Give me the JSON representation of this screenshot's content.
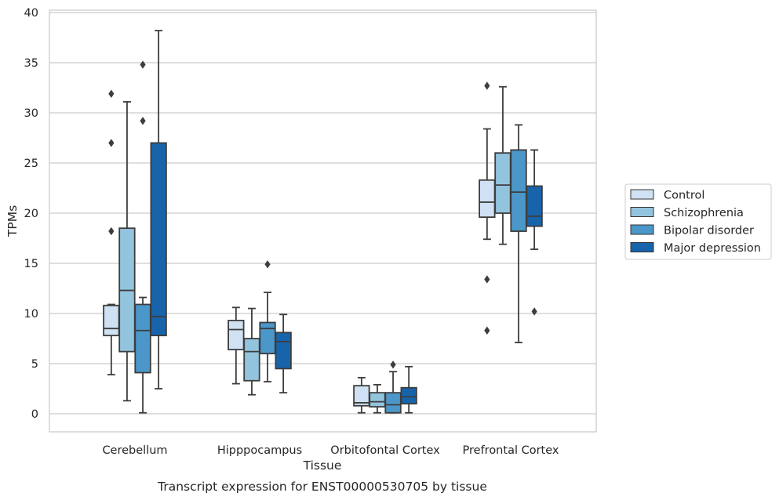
{
  "chart_data": {
    "type": "box",
    "xlabel": "Tissue",
    "ylabel": "TPMs",
    "caption": "Transcript expression for ENST00000530705 by tissue",
    "ylim": [
      -1.8,
      40.2
    ],
    "yticks": [
      0,
      5,
      10,
      15,
      20,
      25,
      30,
      35,
      40
    ],
    "grid": "horizontal",
    "legend_position": "right",
    "categories": [
      "Cerebellum",
      "Hipppocampus",
      "Orbitofontal Cortex",
      "Prefrontal Cortex"
    ],
    "series": [
      {
        "name": "Control",
        "color": "#cfe1f2",
        "boxes": [
          {
            "whisker_low": 3.9,
            "q1": 7.8,
            "median": 8.5,
            "q3": 10.8,
            "whisker_high": 10.9,
            "outliers": [
              31.9,
              27.0,
              18.2
            ]
          },
          {
            "whisker_low": 3.0,
            "q1": 6.4,
            "median": 8.4,
            "q3": 9.3,
            "whisker_high": 10.6,
            "outliers": []
          },
          {
            "whisker_low": 0.1,
            "q1": 0.8,
            "median": 1.1,
            "q3": 2.8,
            "whisker_high": 3.6,
            "outliers": []
          },
          {
            "whisker_low": 17.4,
            "q1": 19.6,
            "median": 21.1,
            "q3": 23.3,
            "whisker_high": 28.4,
            "outliers": [
              32.7,
              13.4,
              8.3
            ]
          }
        ]
      },
      {
        "name": "Schizophrenia",
        "color": "#93c4de",
        "boxes": [
          {
            "whisker_low": 1.3,
            "q1": 6.2,
            "median": 12.3,
            "q3": 18.5,
            "whisker_high": 31.1,
            "outliers": []
          },
          {
            "whisker_low": 1.9,
            "q1": 3.3,
            "median": 6.2,
            "q3": 7.5,
            "whisker_high": 10.5,
            "outliers": []
          },
          {
            "whisker_low": 0.1,
            "q1": 0.7,
            "median": 1.2,
            "q3": 2.1,
            "whisker_high": 2.9,
            "outliers": []
          },
          {
            "whisker_low": 16.9,
            "q1": 20.0,
            "median": 22.8,
            "q3": 26.0,
            "whisker_high": 32.6,
            "outliers": []
          }
        ]
      },
      {
        "name": "Bipolar disorder",
        "color": "#4b97c9",
        "boxes": [
          {
            "whisker_low": 0.1,
            "q1": 4.1,
            "median": 8.3,
            "q3": 10.9,
            "whisker_high": 11.6,
            "outliers": [
              34.8,
              29.2
            ]
          },
          {
            "whisker_low": 3.2,
            "q1": 6.0,
            "median": 8.5,
            "q3": 9.1,
            "whisker_high": 12.1,
            "outliers": [
              14.9
            ]
          },
          {
            "whisker_low": 0.1,
            "q1": 0.1,
            "median": 0.9,
            "q3": 2.1,
            "whisker_high": 4.2,
            "outliers": [
              4.9
            ]
          },
          {
            "whisker_low": 7.1,
            "q1": 18.2,
            "median": 22.1,
            "q3": 26.3,
            "whisker_high": 28.8,
            "outliers": []
          }
        ]
      },
      {
        "name": "Major depression",
        "color": "#1764ab",
        "boxes": [
          {
            "whisker_low": 2.5,
            "q1": 7.8,
            "median": 9.7,
            "q3": 27.0,
            "whisker_high": 38.2,
            "outliers": []
          },
          {
            "whisker_low": 2.1,
            "q1": 4.5,
            "median": 7.2,
            "q3": 8.1,
            "whisker_high": 9.9,
            "outliers": []
          },
          {
            "whisker_low": 0.1,
            "q1": 1.0,
            "median": 1.7,
            "q3": 2.6,
            "whisker_high": 4.7,
            "outliers": []
          },
          {
            "whisker_low": 16.4,
            "q1": 18.7,
            "median": 19.7,
            "q3": 22.7,
            "whisker_high": 26.3,
            "outliers": [
              10.2
            ]
          }
        ]
      }
    ]
  }
}
